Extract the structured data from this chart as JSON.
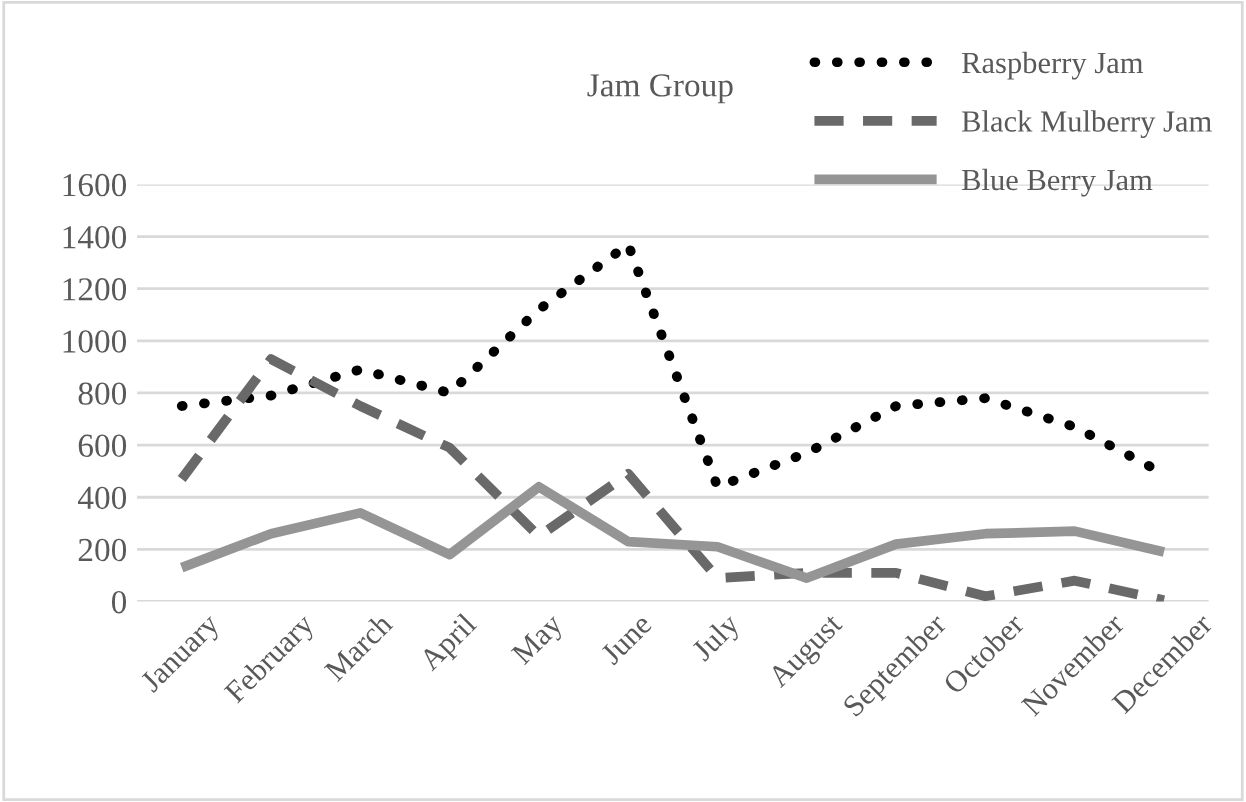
{
  "chart_data": {
    "type": "line",
    "title": "Jam Group",
    "categories": [
      "January",
      "February",
      "March",
      "April",
      "May",
      "June",
      "July",
      "August",
      "September",
      "October",
      "November",
      "December"
    ],
    "series": [
      {
        "name": "Raspberry Jam",
        "color": "#000000",
        "line_style": "dotted",
        "values": [
          750,
          790,
          890,
          800,
          1120,
          1370,
          440,
          570,
          750,
          780,
          670,
          490
        ]
      },
      {
        "name": "Black Mulberry Jam",
        "color": "#696969",
        "line_style": "dashed",
        "values": [
          470,
          930,
          750,
          590,
          250,
          490,
          90,
          110,
          110,
          20,
          80,
          5
        ]
      },
      {
        "name": "Blue Berry Jam",
        "color": "#959595",
        "line_style": "solid",
        "values": [
          130,
          260,
          340,
          180,
          440,
          230,
          210,
          90,
          220,
          260,
          270,
          190
        ]
      }
    ],
    "ylim": [
      0,
      1600
    ],
    "yticks": [
      0,
      200,
      400,
      600,
      800,
      1000,
      1200,
      1400,
      1600
    ],
    "grid": "y",
    "legend": "top right",
    "marker": "none"
  }
}
